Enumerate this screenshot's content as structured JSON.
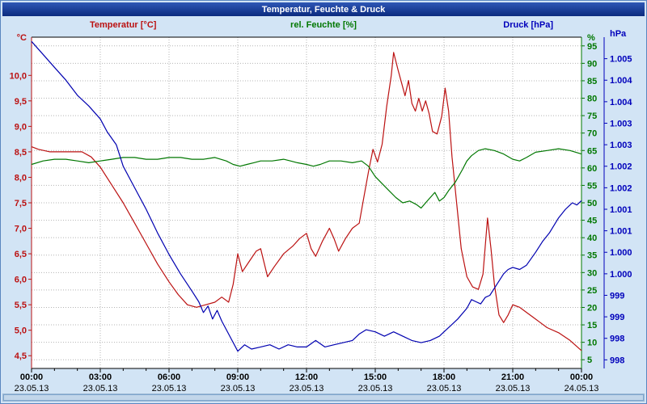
{
  "window": {
    "title": "Temperatur, Feuchte & Druck"
  },
  "scrollbar": {
    "present": true
  },
  "chart_data": {
    "type": "line",
    "title": "Temperatur, Feuchte & Druck",
    "grid": true,
    "legend_position": "top",
    "x": {
      "label": "",
      "min": 0,
      "max": 24,
      "ticks": [
        {
          "hour": 0,
          "time": "00:00",
          "date": "23.05.13"
        },
        {
          "hour": 3,
          "time": "03:00",
          "date": "23.05.13"
        },
        {
          "hour": 6,
          "time": "06:00",
          "date": "23.05.13"
        },
        {
          "hour": 9,
          "time": "09:00",
          "date": "23.05.13"
        },
        {
          "hour": 12,
          "time": "12:00",
          "date": "23.05.13"
        },
        {
          "hour": 15,
          "time": "15:00",
          "date": "23.05.13"
        },
        {
          "hour": 18,
          "time": "18:00",
          "date": "23.05.13"
        },
        {
          "hour": 21,
          "time": "21:00",
          "date": "23.05.13"
        },
        {
          "hour": 24,
          "time": "00:00",
          "date": "24.05.13"
        }
      ]
    },
    "axes": {
      "temperature": {
        "title": "Temperatur [°C]",
        "unit": "°C",
        "color": "#bb1111",
        "min": 4.25,
        "max": 10.75,
        "ticks": [
          {
            "label": "10,0",
            "value": 10.0
          },
          {
            "label": "9,5",
            "value": 9.5
          },
          {
            "label": "9,0",
            "value": 9.0
          },
          {
            "label": "8,5",
            "value": 8.5
          },
          {
            "label": "8,0",
            "value": 8.0
          },
          {
            "label": "7,5",
            "value": 7.5
          },
          {
            "label": "7,0",
            "value": 7.0
          },
          {
            "label": "6,5",
            "value": 6.5
          },
          {
            "label": "6,0",
            "value": 6.0
          },
          {
            "label": "5,5",
            "value": 5.5
          },
          {
            "label": "5,0",
            "value": 5.0
          },
          {
            "label": "4,5",
            "value": 4.5
          }
        ]
      },
      "humidity": {
        "title": "rel. Feuchte [%]",
        "unit": "%",
        "color": "#007700",
        "min": 2.5,
        "max": 97.5,
        "ticks": [
          {
            "label": "95",
            "value": 95
          },
          {
            "label": "90",
            "value": 90
          },
          {
            "label": "85",
            "value": 85
          },
          {
            "label": "80",
            "value": 80
          },
          {
            "label": "75",
            "value": 75
          },
          {
            "label": "70",
            "value": 70
          },
          {
            "label": "65",
            "value": 65
          },
          {
            "label": "60",
            "value": 60
          },
          {
            "label": "55",
            "value": 55
          },
          {
            "label": "50",
            "value": 50
          },
          {
            "label": "45",
            "value": 45
          },
          {
            "label": "40",
            "value": 40
          },
          {
            "label": "35",
            "value": 35
          },
          {
            "label": "30",
            "value": 30
          },
          {
            "label": "25",
            "value": 25
          },
          {
            "label": "20",
            "value": 20
          },
          {
            "label": "15",
            "value": 15
          },
          {
            "label": "10",
            "value": 10
          },
          {
            "label": "5",
            "value": 5
          }
        ]
      },
      "pressure": {
        "title": "Druck [hPa]",
        "unit": "hPa",
        "color": "#0000bb",
        "min": 997.8,
        "max": 1005.5,
        "ticks": [
          {
            "label": "1.005",
            "value": 1005
          },
          {
            "label": "1.004",
            "value": 1004.5
          },
          {
            "label": "1.004",
            "value": 1004
          },
          {
            "label": "1.003",
            "value": 1003.5
          },
          {
            "label": "1.003",
            "value": 1003
          },
          {
            "label": "1.002",
            "value": 1002.5
          },
          {
            "label": "1.002",
            "value": 1002
          },
          {
            "label": "1.001",
            "value": 1001.5
          },
          {
            "label": "1.001",
            "value": 1001
          },
          {
            "label": "1.000",
            "value": 1000.5
          },
          {
            "label": "1.000",
            "value": 1000
          },
          {
            "label": "999",
            "value": 999.5
          },
          {
            "label": "999",
            "value": 999
          },
          {
            "label": "998",
            "value": 998.5
          },
          {
            "label": "998",
            "value": 998
          }
        ]
      }
    },
    "series": [
      {
        "name": "Temperatur",
        "unit": "°C",
        "axis": "temperature",
        "color": "#bb1111",
        "points": [
          [
            0,
            8.6
          ],
          [
            0.3,
            8.55
          ],
          [
            0.8,
            8.5
          ],
          [
            1.5,
            8.5
          ],
          [
            2.2,
            8.5
          ],
          [
            2.6,
            8.4
          ],
          [
            3,
            8.2
          ],
          [
            3.5,
            7.85
          ],
          [
            4,
            7.5
          ],
          [
            4.5,
            7.1
          ],
          [
            5,
            6.7
          ],
          [
            5.5,
            6.3
          ],
          [
            6,
            5.95
          ],
          [
            6.4,
            5.7
          ],
          [
            6.8,
            5.5
          ],
          [
            7.2,
            5.45
          ],
          [
            7.6,
            5.5
          ],
          [
            8,
            5.55
          ],
          [
            8.3,
            5.65
          ],
          [
            8.6,
            5.55
          ],
          [
            8.8,
            5.9
          ],
          [
            9,
            6.5
          ],
          [
            9.2,
            6.15
          ],
          [
            9.5,
            6.35
          ],
          [
            9.8,
            6.55
          ],
          [
            10,
            6.6
          ],
          [
            10.3,
            6.05
          ],
          [
            10.6,
            6.25
          ],
          [
            11,
            6.5
          ],
          [
            11.4,
            6.65
          ],
          [
            11.7,
            6.8
          ],
          [
            12,
            6.9
          ],
          [
            12.2,
            6.6
          ],
          [
            12.4,
            6.45
          ],
          [
            12.7,
            6.75
          ],
          [
            13,
            7
          ],
          [
            13.2,
            6.8
          ],
          [
            13.4,
            6.55
          ],
          [
            13.7,
            6.8
          ],
          [
            14,
            7
          ],
          [
            14.3,
            7.1
          ],
          [
            14.5,
            7.6
          ],
          [
            14.7,
            8.1
          ],
          [
            14.9,
            8.55
          ],
          [
            15.1,
            8.3
          ],
          [
            15.3,
            8.65
          ],
          [
            15.5,
            9.4
          ],
          [
            15.7,
            10
          ],
          [
            15.8,
            10.45
          ],
          [
            16,
            10.1
          ],
          [
            16.15,
            9.85
          ],
          [
            16.3,
            9.6
          ],
          [
            16.45,
            9.9
          ],
          [
            16.6,
            9.45
          ],
          [
            16.75,
            9.3
          ],
          [
            16.9,
            9.55
          ],
          [
            17.05,
            9.3
          ],
          [
            17.2,
            9.5
          ],
          [
            17.35,
            9.25
          ],
          [
            17.5,
            8.9
          ],
          [
            17.7,
            8.85
          ],
          [
            17.9,
            9.2
          ],
          [
            18.05,
            9.75
          ],
          [
            18.2,
            9.3
          ],
          [
            18.35,
            8.4
          ],
          [
            18.55,
            7.5
          ],
          [
            18.75,
            6.6
          ],
          [
            19,
            6.05
          ],
          [
            19.25,
            5.85
          ],
          [
            19.5,
            5.8
          ],
          [
            19.7,
            6.1
          ],
          [
            19.9,
            7.2
          ],
          [
            20.05,
            6.6
          ],
          [
            20.2,
            5.9
          ],
          [
            20.4,
            5.3
          ],
          [
            20.6,
            5.15
          ],
          [
            20.8,
            5.3
          ],
          [
            21,
            5.5
          ],
          [
            21.3,
            5.45
          ],
          [
            21.6,
            5.35
          ],
          [
            21.9,
            5.25
          ],
          [
            22.2,
            5.15
          ],
          [
            22.5,
            5.05
          ],
          [
            23,
            4.95
          ],
          [
            23.5,
            4.8
          ],
          [
            24,
            4.6
          ]
        ]
      },
      {
        "name": "rel. Feuchte",
        "unit": "%",
        "axis": "humidity",
        "color": "#007700",
        "points": [
          [
            0,
            61
          ],
          [
            0.5,
            62
          ],
          [
            1,
            62.5
          ],
          [
            1.5,
            62.5
          ],
          [
            2,
            62
          ],
          [
            2.5,
            61.5
          ],
          [
            3,
            62
          ],
          [
            3.5,
            62.5
          ],
          [
            4,
            63
          ],
          [
            4.5,
            63
          ],
          [
            5,
            62.5
          ],
          [
            5.5,
            62.5
          ],
          [
            6,
            63
          ],
          [
            6.5,
            63
          ],
          [
            7,
            62.5
          ],
          [
            7.5,
            62.5
          ],
          [
            8,
            63
          ],
          [
            8.5,
            62
          ],
          [
            8.8,
            61
          ],
          [
            9.1,
            60.5
          ],
          [
            9.4,
            61
          ],
          [
            9.7,
            61.5
          ],
          [
            10,
            62
          ],
          [
            10.5,
            62
          ],
          [
            11,
            62.5
          ],
          [
            11.3,
            62
          ],
          [
            11.6,
            61.5
          ],
          [
            12,
            61
          ],
          [
            12.3,
            60.5
          ],
          [
            12.6,
            61
          ],
          [
            13,
            62
          ],
          [
            13.5,
            62
          ],
          [
            14,
            61.5
          ],
          [
            14.4,
            62
          ],
          [
            14.7,
            60.5
          ],
          [
            15,
            57.5
          ],
          [
            15.3,
            55.5
          ],
          [
            15.6,
            53.5
          ],
          [
            15.9,
            51.5
          ],
          [
            16.2,
            50
          ],
          [
            16.5,
            50.5
          ],
          [
            16.8,
            49.5
          ],
          [
            17,
            48.5
          ],
          [
            17.2,
            50
          ],
          [
            17.4,
            51.5
          ],
          [
            17.6,
            53
          ],
          [
            17.8,
            50.5
          ],
          [
            18,
            51.5
          ],
          [
            18.2,
            53.5
          ],
          [
            18.5,
            56
          ],
          [
            18.8,
            59.5
          ],
          [
            19,
            62
          ],
          [
            19.2,
            63.5
          ],
          [
            19.5,
            65
          ],
          [
            19.8,
            65.5
          ],
          [
            20.2,
            65
          ],
          [
            20.6,
            64
          ],
          [
            21,
            62.5
          ],
          [
            21.3,
            62
          ],
          [
            21.6,
            63
          ],
          [
            22,
            64.5
          ],
          [
            22.5,
            65
          ],
          [
            23,
            65.5
          ],
          [
            23.5,
            65
          ],
          [
            24,
            64
          ]
        ]
      },
      {
        "name": "Druck",
        "unit": "hPa",
        "axis": "pressure",
        "color": "#0000b0",
        "points": [
          [
            0,
            1005.4
          ],
          [
            0.5,
            1005.1
          ],
          [
            1,
            1004.8
          ],
          [
            1.5,
            1004.5
          ],
          [
            2,
            1004.15
          ],
          [
            2.5,
            1003.9
          ],
          [
            3,
            1003.6
          ],
          [
            3.3,
            1003.3
          ],
          [
            3.7,
            1003
          ],
          [
            4,
            1002.5
          ],
          [
            4.5,
            1002
          ],
          [
            5,
            1001.5
          ],
          [
            5.5,
            1000.95
          ],
          [
            6,
            1000.45
          ],
          [
            6.5,
            1000
          ],
          [
            7,
            999.6
          ],
          [
            7.3,
            999.35
          ],
          [
            7.5,
            999.1
          ],
          [
            7.7,
            999.25
          ],
          [
            7.9,
            998.95
          ],
          [
            8.1,
            999.15
          ],
          [
            8.3,
            998.9
          ],
          [
            8.6,
            998.6
          ],
          [
            9,
            998.2
          ],
          [
            9.3,
            998.35
          ],
          [
            9.6,
            998.25
          ],
          [
            10,
            998.3
          ],
          [
            10.4,
            998.35
          ],
          [
            10.8,
            998.25
          ],
          [
            11.2,
            998.35
          ],
          [
            11.6,
            998.3
          ],
          [
            12,
            998.3
          ],
          [
            12.4,
            998.45
          ],
          [
            12.8,
            998.3
          ],
          [
            13.2,
            998.35
          ],
          [
            13.6,
            998.4
          ],
          [
            14,
            998.45
          ],
          [
            14.3,
            998.6
          ],
          [
            14.6,
            998.7
          ],
          [
            15,
            998.65
          ],
          [
            15.4,
            998.55
          ],
          [
            15.8,
            998.65
          ],
          [
            16.2,
            998.55
          ],
          [
            16.6,
            998.45
          ],
          [
            17,
            998.4
          ],
          [
            17.4,
            998.45
          ],
          [
            17.8,
            998.55
          ],
          [
            18,
            998.65
          ],
          [
            18.3,
            998.8
          ],
          [
            18.6,
            998.95
          ],
          [
            19,
            999.2
          ],
          [
            19.2,
            999.4
          ],
          [
            19.4,
            999.35
          ],
          [
            19.6,
            999.3
          ],
          [
            19.8,
            999.45
          ],
          [
            20,
            999.5
          ],
          [
            20.3,
            999.75
          ],
          [
            20.6,
            1000
          ],
          [
            20.8,
            1000.1
          ],
          [
            21,
            1000.15
          ],
          [
            21.3,
            1000.1
          ],
          [
            21.6,
            1000.2
          ],
          [
            22,
            1000.5
          ],
          [
            22.3,
            1000.75
          ],
          [
            22.6,
            1000.95
          ],
          [
            23,
            1001.3
          ],
          [
            23.3,
            1001.5
          ],
          [
            23.6,
            1001.65
          ],
          [
            23.8,
            1001.6
          ],
          [
            24,
            1001.7
          ]
        ]
      }
    ]
  }
}
